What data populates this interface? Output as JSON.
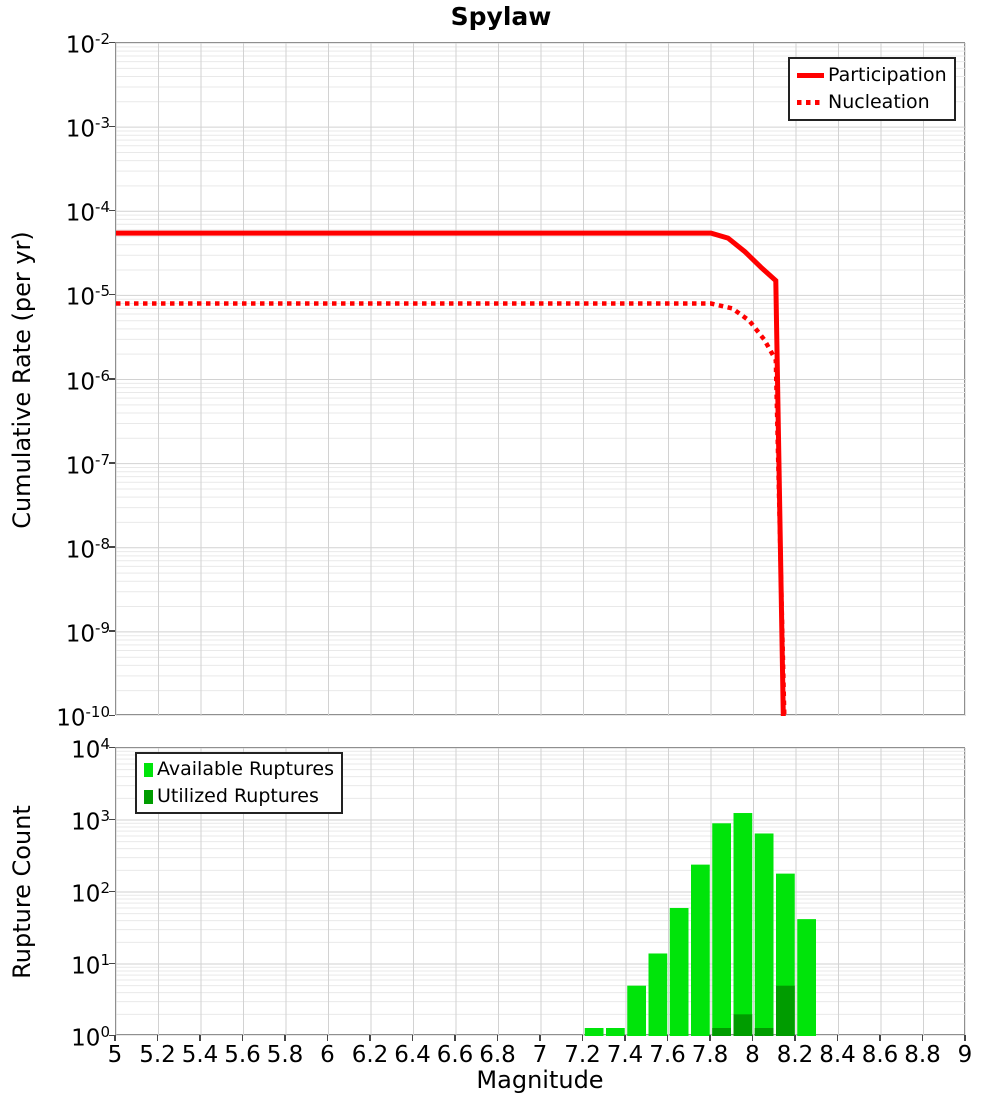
{
  "title": "Spylaw",
  "colors": {
    "participation": "#ff0000",
    "nucleation": "#ff0000",
    "available": "#00e40a",
    "utilized": "#009c00",
    "grid_major": "#d2d2d2",
    "grid_minor": "#e9e9e9",
    "plot_border": "#8f8f8f"
  },
  "x_tick_labels": [
    "5",
    "5.2",
    "5.4",
    "5.6",
    "5.8",
    "6",
    "6.2",
    "6.4",
    "6.6",
    "6.8",
    "7",
    "7.2",
    "7.4",
    "7.6",
    "7.8",
    "8",
    "8.2",
    "8.4",
    "8.6",
    "8.8",
    "9"
  ],
  "chart_data": [
    {
      "type": "line",
      "title": "Spylaw",
      "xlabel": "",
      "ylabel": "Cumulative Rate (per yr)",
      "x_range": [
        5,
        9
      ],
      "y_range": [
        1e-10,
        0.01
      ],
      "y_scale": "log",
      "grid": true,
      "legend_position": "top-right",
      "y_ticks": [
        {
          "base": "10",
          "exp": "-2"
        },
        {
          "base": "10",
          "exp": "-3"
        },
        {
          "base": "10",
          "exp": "-4"
        },
        {
          "base": "10",
          "exp": "-5"
        },
        {
          "base": "10",
          "exp": "-6"
        },
        {
          "base": "10",
          "exp": "-7"
        },
        {
          "base": "10",
          "exp": "-8"
        },
        {
          "base": "10",
          "exp": "-9"
        },
        {
          "base": "10",
          "exp": "-10"
        }
      ],
      "series": [
        {
          "name": "Participation",
          "style": "solid",
          "color": "#ff0000",
          "points": [
            [
              5.0,
              5.5e-05
            ],
            [
              7.8,
              5.5e-05
            ],
            [
              7.88,
              4.8e-05
            ],
            [
              7.96,
              3.3e-05
            ],
            [
              8.04,
              2.1e-05
            ],
            [
              8.105,
              1.5e-05
            ],
            [
              8.14,
              1e-10
            ]
          ]
        },
        {
          "name": "Nucleation",
          "style": "dotted",
          "color": "#ff0000",
          "points": [
            [
              5.0,
              8e-06
            ],
            [
              7.8,
              8e-06
            ],
            [
              7.9,
              7e-06
            ],
            [
              7.98,
              5e-06
            ],
            [
              8.05,
              3e-06
            ],
            [
              8.105,
              1.7e-06
            ],
            [
              8.145,
              1e-10
            ]
          ]
        }
      ]
    },
    {
      "type": "bar",
      "title": "",
      "xlabel": "Magnitude",
      "ylabel": "Rupture Count",
      "x_range": [
        5,
        9
      ],
      "y_range": [
        1,
        10000
      ],
      "y_scale": "log",
      "grid": true,
      "legend_position": "top-left",
      "bar_width": 0.1,
      "y_ticks": [
        {
          "base": "10",
          "exp": "4"
        },
        {
          "base": "10",
          "exp": "3"
        },
        {
          "base": "10",
          "exp": "2"
        },
        {
          "base": "10",
          "exp": "1"
        },
        {
          "base": "10",
          "exp": "0"
        }
      ],
      "categories": [
        7.25,
        7.35,
        7.45,
        7.55,
        7.65,
        7.75,
        7.85,
        7.95,
        8.05,
        8.15,
        8.25
      ],
      "series": [
        {
          "name": "Available Ruptures",
          "color": "#00e40a",
          "values": [
            1,
            1,
            5,
            14,
            60,
            240,
            900,
            1250,
            650,
            180,
            42
          ]
        },
        {
          "name": "Utilized Ruptures",
          "color": "#009c00",
          "values": [
            0,
            0,
            0,
            0,
            0,
            0,
            1,
            2,
            1,
            5,
            0
          ]
        }
      ]
    }
  ]
}
